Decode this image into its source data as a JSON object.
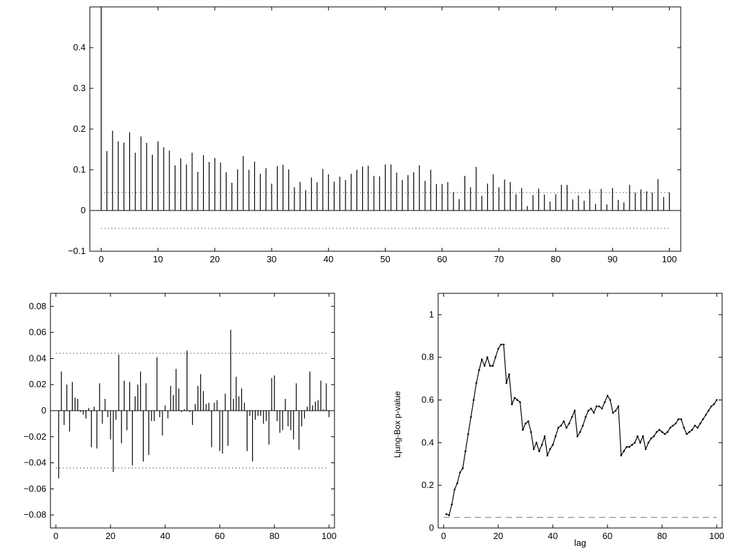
{
  "chart_data": [
    {
      "type": "bar",
      "title": "",
      "xlabel": "",
      "ylabel": "",
      "xlim": [
        -2,
        102
      ],
      "ylim": [
        -0.1,
        0.5
      ],
      "xticks": [
        0,
        10,
        20,
        30,
        40,
        50,
        60,
        70,
        80,
        90,
        100
      ],
      "yticks": [
        -0.1,
        0,
        0.1,
        0.2,
        0.3,
        0.4
      ],
      "ytick_labels": [
        "−0.1",
        "0",
        "0.1",
        "0.2",
        "0.3",
        "0.4"
      ],
      "confidence_band": [
        0.044,
        -0.044
      ],
      "grid": false,
      "x": [
        0,
        1,
        2,
        3,
        4,
        5,
        6,
        7,
        8,
        9,
        10,
        11,
        12,
        13,
        14,
        15,
        16,
        17,
        18,
        19,
        20,
        21,
        22,
        23,
        24,
        25,
        26,
        27,
        28,
        29,
        30,
        31,
        32,
        33,
        34,
        35,
        36,
        37,
        38,
        39,
        40,
        41,
        42,
        43,
        44,
        45,
        46,
        47,
        48,
        49,
        50,
        51,
        52,
        53,
        54,
        55,
        56,
        57,
        58,
        59,
        60,
        61,
        62,
        63,
        64,
        65,
        66,
        67,
        68,
        69,
        70,
        71,
        72,
        73,
        74,
        75,
        76,
        77,
        78,
        79,
        80,
        81,
        82,
        83,
        84,
        85,
        86,
        87,
        88,
        89,
        90,
        91,
        92,
        93,
        94,
        95,
        96,
        97,
        98,
        99,
        100
      ],
      "values": [
        0.5,
        0.146,
        0.196,
        0.17,
        0.167,
        0.192,
        0.142,
        0.182,
        0.166,
        0.137,
        0.17,
        0.155,
        0.147,
        0.111,
        0.128,
        0.113,
        0.142,
        0.095,
        0.136,
        0.119,
        0.129,
        0.118,
        0.094,
        0.068,
        0.101,
        0.134,
        0.1,
        0.12,
        0.09,
        0.104,
        0.066,
        0.109,
        0.112,
        0.101,
        0.057,
        0.07,
        0.05,
        0.081,
        0.069,
        0.102,
        0.089,
        0.071,
        0.083,
        0.075,
        0.09,
        0.1,
        0.108,
        0.11,
        0.085,
        0.084,
        0.113,
        0.113,
        0.093,
        0.075,
        0.087,
        0.094,
        0.111,
        0.073,
        0.1,
        0.065,
        0.065,
        0.07,
        0.045,
        0.028,
        0.085,
        0.057,
        0.107,
        0.036,
        0.066,
        0.089,
        0.057,
        0.076,
        0.07,
        0.04,
        0.055,
        0.011,
        0.038,
        0.054,
        0.039,
        0.022,
        0.04,
        0.063,
        0.063,
        0.027,
        0.037,
        0.024,
        0.052,
        0.016,
        0.053,
        0.015,
        0.055,
        0.026,
        0.02,
        0.063,
        0.044,
        0.052,
        0.047,
        0.044,
        0.077,
        0.033,
        0.044
      ]
    },
    {
      "type": "bar",
      "title": "",
      "xlabel": "",
      "ylabel": "",
      "xlim": [
        -2,
        102
      ],
      "ylim": [
        -0.09,
        0.09
      ],
      "xticks": [
        0,
        20,
        40,
        60,
        80,
        100
      ],
      "yticks": [
        -0.08,
        -0.06,
        -0.04,
        -0.02,
        0,
        0.02,
        0.04,
        0.06,
        0.08
      ],
      "ytick_labels": [
        "−0.08",
        "−0.06",
        "−0.04",
        "−0.02",
        "0",
        "0.02",
        "0.04",
        "0.06",
        "0.08"
      ],
      "confidence_band": [
        0.044,
        -0.044
      ],
      "grid": false,
      "x": [
        1,
        2,
        3,
        4,
        5,
        6,
        7,
        8,
        9,
        10,
        11,
        12,
        13,
        14,
        15,
        16,
        17,
        18,
        19,
        20,
        21,
        22,
        23,
        24,
        25,
        26,
        27,
        28,
        29,
        30,
        31,
        32,
        33,
        34,
        35,
        36,
        37,
        38,
        39,
        40,
        41,
        42,
        43,
        44,
        45,
        46,
        47,
        48,
        49,
        50,
        51,
        52,
        53,
        54,
        55,
        56,
        57,
        58,
        59,
        60,
        61,
        62,
        63,
        64,
        65,
        66,
        67,
        68,
        69,
        70,
        71,
        72,
        73,
        74,
        75,
        76,
        77,
        78,
        79,
        80,
        81,
        82,
        83,
        84,
        85,
        86,
        87,
        88,
        89,
        90,
        91,
        92,
        93,
        94,
        95,
        96,
        97,
        98,
        99,
        100
      ],
      "values": [
        -0.052,
        0.03,
        -0.011,
        0.02,
        -0.016,
        0.022,
        0.01,
        0.009,
        -0.001,
        -0.003,
        -0.006,
        0.002,
        -0.028,
        0.003,
        -0.029,
        0.021,
        -0.01,
        0.009,
        -0.005,
        -0.022,
        -0.047,
        -0.007,
        0.043,
        -0.025,
        0.023,
        -0.015,
        0.022,
        -0.042,
        0.011,
        0.02,
        0.03,
        -0.039,
        0.021,
        -0.034,
        -0.008,
        -0.008,
        0.041,
        -0.005,
        -0.019,
        0.004,
        -0.006,
        0.019,
        0.012,
        0.032,
        0.017,
        -0.001,
        0.001,
        0.046,
        -0.001,
        -0.011,
        0.005,
        0.019,
        0.028,
        0.015,
        0.005,
        0.006,
        -0.028,
        0.006,
        0.008,
        -0.031,
        -0.033,
        0.013,
        -0.027,
        0.062,
        0.009,
        0.026,
        0.011,
        0.017,
        0.006,
        -0.031,
        -0.004,
        -0.039,
        -0.007,
        -0.004,
        -0.004,
        -0.01,
        -0.008,
        -0.026,
        0.025,
        0.027,
        -0.008,
        -0.017,
        -0.015,
        0.009,
        -0.012,
        -0.015,
        -0.022,
        0.021,
        -0.03,
        -0.012,
        -0.006,
        0.003,
        0.03,
        0.004,
        0.007,
        0.008,
        0.023,
        0.001,
        0.021,
        -0.005
      ]
    },
    {
      "type": "line",
      "title": "",
      "xlabel": "lag",
      "ylabel": "Ljung-Box p-value",
      "xlim": [
        -2,
        102
      ],
      "ylim": [
        0,
        1.1
      ],
      "xticks": [
        0,
        20,
        40,
        60,
        80,
        100
      ],
      "yticks": [
        0,
        0.2,
        0.4,
        0.6,
        0.8,
        1
      ],
      "ytick_labels": [
        "0",
        "0.2",
        "0.4",
        "0.6",
        "0.8",
        "1"
      ],
      "significance_line": 0.05,
      "grid": false,
      "x": [
        1,
        2,
        3,
        4,
        5,
        6,
        7,
        8,
        9,
        10,
        11,
        12,
        13,
        14,
        15,
        16,
        17,
        18,
        19,
        20,
        21,
        22,
        23,
        24,
        25,
        26,
        27,
        28,
        29,
        30,
        31,
        32,
        33,
        34,
        35,
        36,
        37,
        38,
        39,
        40,
        41,
        42,
        43,
        44,
        45,
        46,
        47,
        48,
        49,
        50,
        51,
        52,
        53,
        54,
        55,
        56,
        57,
        58,
        59,
        60,
        61,
        62,
        63,
        64,
        65,
        66,
        67,
        68,
        69,
        70,
        71,
        72,
        73,
        74,
        75,
        76,
        77,
        78,
        79,
        80,
        81,
        82,
        83,
        84,
        85,
        86,
        87,
        88,
        89,
        90,
        91,
        92,
        93,
        94,
        95,
        96,
        97,
        98,
        99,
        100
      ],
      "values": [
        0.065,
        0.06,
        0.11,
        0.18,
        0.21,
        0.26,
        0.28,
        0.36,
        0.44,
        0.52,
        0.6,
        0.68,
        0.74,
        0.79,
        0.76,
        0.8,
        0.76,
        0.76,
        0.8,
        0.84,
        0.86,
        0.86,
        0.68,
        0.72,
        0.58,
        0.61,
        0.6,
        0.59,
        0.46,
        0.49,
        0.5,
        0.45,
        0.37,
        0.4,
        0.36,
        0.39,
        0.43,
        0.34,
        0.37,
        0.39,
        0.43,
        0.47,
        0.48,
        0.5,
        0.47,
        0.49,
        0.52,
        0.55,
        0.43,
        0.45,
        0.48,
        0.52,
        0.55,
        0.56,
        0.54,
        0.57,
        0.57,
        0.56,
        0.59,
        0.62,
        0.6,
        0.54,
        0.55,
        0.57,
        0.34,
        0.36,
        0.38,
        0.38,
        0.39,
        0.4,
        0.43,
        0.4,
        0.43,
        0.37,
        0.4,
        0.42,
        0.43,
        0.45,
        0.46,
        0.45,
        0.44,
        0.45,
        0.47,
        0.48,
        0.49,
        0.51,
        0.51,
        0.47,
        0.44,
        0.45,
        0.46,
        0.48,
        0.47,
        0.49,
        0.51,
        0.53,
        0.55,
        0.57,
        0.58,
        0.6
      ]
    }
  ]
}
